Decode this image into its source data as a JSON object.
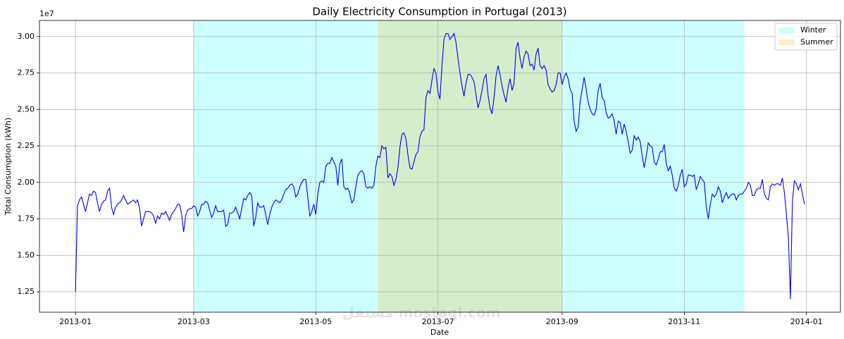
{
  "chart_data": {
    "type": "line",
    "title": "Daily Electricity Consumption in Portugal (2013)",
    "xlabel": "Date",
    "ylabel": "Total Consumption (kWh)",
    "y_offset_label": "1e7",
    "watermark": "مستقل mostaql.com",
    "color": "#0000ff",
    "grid": true,
    "legend": "upper right",
    "xlim": [
      -18,
      382
    ],
    "ylim": [
      1.11,
      3.11
    ],
    "xticks": [
      {
        "value": 0,
        "label": "2013-01"
      },
      {
        "value": 59,
        "label": "2013-03"
      },
      {
        "value": 120,
        "label": "2013-05"
      },
      {
        "value": 181,
        "label": "2013-07"
      },
      {
        "value": 243,
        "label": "2013-09"
      },
      {
        "value": 304,
        "label": "2013-11"
      },
      {
        "value": 365,
        "label": "2014-01"
      }
    ],
    "yticks": [
      1.25,
      {
        "value": 1.5,
        "label": "1.50"
      },
      1.75,
      {
        "value": 2,
        "label": "2.00"
      },
      2.25,
      {
        "value": 2.5,
        "label": "2.50"
      },
      2.75,
      {
        "value": 3,
        "label": "3.00"
      }
    ],
    "shaded_regions": [
      {
        "name": "Winter",
        "color": "#00ffff",
        "opacity": 0.2,
        "range": [
          59,
          334
        ]
      },
      {
        "name": "Summer",
        "color": "#ffa500",
        "opacity": 0.2,
        "range": [
          151,
          243
        ]
      }
    ],
    "x": [
      0,
      1,
      2,
      3,
      4,
      5,
      6,
      7,
      8,
      9,
      10,
      11,
      12,
      13,
      14,
      15,
      16,
      17,
      18,
      19,
      20,
      21,
      22,
      23,
      24,
      25,
      26,
      27,
      28,
      29,
      30,
      31,
      32,
      33,
      34,
      35,
      36,
      37,
      38,
      39,
      40,
      41,
      42,
      43,
      44,
      45,
      46,
      47,
      48,
      49,
      50,
      51,
      52,
      53,
      54,
      55,
      56,
      57,
      58,
      59,
      60,
      61,
      62,
      63,
      64,
      65,
      66,
      67,
      68,
      69,
      70,
      71,
      72,
      73,
      74,
      75,
      76,
      77,
      78,
      79,
      80,
      81,
      82,
      83,
      84,
      85,
      86,
      87,
      88,
      89,
      90,
      91,
      92,
      93,
      94,
      95,
      96,
      97,
      98,
      99,
      100,
      101,
      102,
      103,
      104,
      105,
      106,
      107,
      108,
      109,
      110,
      111,
      112,
      113,
      114,
      115,
      116,
      117,
      118,
      119,
      120,
      121,
      122,
      123,
      124,
      125,
      126,
      127,
      128,
      129,
      130,
      131,
      132,
      133,
      134,
      135,
      136,
      137,
      138,
      139,
      140,
      141,
      142,
      143,
      144,
      145,
      146,
      147,
      148,
      149,
      150,
      151,
      152,
      153,
      154,
      155,
      156,
      157,
      158,
      159,
      160,
      161,
      162,
      163,
      164,
      165,
      166,
      167,
      168,
      169,
      170,
      171,
      172,
      173,
      174,
      175,
      176,
      177,
      178,
      179,
      180,
      181,
      182,
      183,
      184,
      185,
      186,
      187,
      188,
      189,
      190,
      191,
      192,
      193,
      194,
      195,
      196,
      197,
      198,
      199,
      200,
      201,
      202,
      203,
      204,
      205,
      206,
      207,
      208,
      209,
      210,
      211,
      212,
      213,
      214,
      215,
      216,
      217,
      218,
      219,
      220,
      221,
      222,
      223,
      224,
      225,
      226,
      227,
      228,
      229,
      230,
      231,
      232,
      233,
      234,
      235,
      236,
      237,
      238,
      239,
      240,
      241,
      242,
      243,
      244,
      245,
      246,
      247,
      248,
      249,
      250,
      251,
      252,
      253,
      254,
      255,
      256,
      257,
      258,
      259,
      260,
      261,
      262,
      263,
      264,
      265,
      266,
      267,
      268,
      269,
      270,
      271,
      272,
      273,
      274,
      275,
      276,
      277,
      278,
      279,
      280,
      281,
      282,
      283,
      284,
      285,
      286,
      287,
      288,
      289,
      290,
      291,
      292,
      293,
      294,
      295,
      296,
      297,
      298,
      299,
      300,
      301,
      302,
      303,
      304,
      305,
      306,
      307,
      308,
      309,
      310,
      311,
      312,
      313,
      314,
      315,
      316,
      317,
      318,
      319,
      320,
      321,
      322,
      323,
      324,
      325,
      326,
      327,
      328,
      329,
      330,
      331,
      332,
      333,
      334,
      335,
      336,
      337,
      338,
      339,
      340,
      341,
      342,
      343,
      344,
      345,
      346,
      347,
      348,
      349,
      350,
      351,
      352,
      353,
      354,
      355,
      356,
      357,
      358,
      359,
      360,
      361,
      362,
      363,
      364
    ],
    "values": [
      1.25,
      1.84,
      1.88,
      1.9,
      1.85,
      1.8,
      1.86,
      1.92,
      1.91,
      1.94,
      1.93,
      1.86,
      1.8,
      1.85,
      1.87,
      1.88,
      1.94,
      1.96,
      1.83,
      1.78,
      1.83,
      1.85,
      1.86,
      1.88,
      1.91,
      1.88,
      1.85,
      1.86,
      1.87,
      1.88,
      1.86,
      1.88,
      1.82,
      1.7,
      1.75,
      1.8,
      1.8,
      1.8,
      1.79,
      1.77,
      1.72,
      1.77,
      1.75,
      1.79,
      1.78,
      1.8,
      1.77,
      1.74,
      1.78,
      1.8,
      1.82,
      1.85,
      1.85,
      1.78,
      1.66,
      1.77,
      1.81,
      1.82,
      1.82,
      1.84,
      1.83,
      1.77,
      1.8,
      1.85,
      1.85,
      1.87,
      1.86,
      1.81,
      1.76,
      1.79,
      1.84,
      1.8,
      1.8,
      1.8,
      1.81,
      1.7,
      1.71,
      1.79,
      1.79,
      1.8,
      1.83,
      1.79,
      1.75,
      1.82,
      1.89,
      1.88,
      1.91,
      1.93,
      1.91,
      1.7,
      1.76,
      1.86,
      1.83,
      1.83,
      1.84,
      1.78,
      1.71,
      1.78,
      1.83,
      1.86,
      1.88,
      1.87,
      1.86,
      1.88,
      1.92,
      1.95,
      1.96,
      1.98,
      1.99,
      1.97,
      1.9,
      1.92,
      1.97,
      2.0,
      2.02,
      2.02,
      1.9,
      1.77,
      1.8,
      1.85,
      1.78,
      1.92,
      2.0,
      2.01,
      2.0,
      2.11,
      2.13,
      2.13,
      2.17,
      2.14,
      2.11,
      1.98,
      2.13,
      2.16,
      1.97,
      1.95,
      1.96,
      1.92,
      1.86,
      1.88,
      1.97,
      2.05,
      2.07,
      2.08,
      2.06,
      1.97,
      1.96,
      1.97,
      1.96,
      1.98,
      2.11,
      2.18,
      2.17,
      2.25,
      2.23,
      2.24,
      2.03,
      2.06,
      2.04,
      1.98,
      2.02,
      2.1,
      2.24,
      2.33,
      2.34,
      2.3,
      2.19,
      2.1,
      2.09,
      2.14,
      2.19,
      2.21,
      2.31,
      2.35,
      2.36,
      2.58,
      2.63,
      2.61,
      2.7,
      2.78,
      2.75,
      2.62,
      2.57,
      2.8,
      2.98,
      3.02,
      3.02,
      2.98,
      3.0,
      3.02,
      2.96,
      2.85,
      2.75,
      2.66,
      2.59,
      2.68,
      2.74,
      2.74,
      2.72,
      2.69,
      2.6,
      2.51,
      2.56,
      2.63,
      2.71,
      2.74,
      2.6,
      2.51,
      2.47,
      2.58,
      2.73,
      2.8,
      2.74,
      2.66,
      2.6,
      2.55,
      2.65,
      2.71,
      2.63,
      2.68,
      2.92,
      2.96,
      2.85,
      2.78,
      2.86,
      2.9,
      2.88,
      2.8,
      2.81,
      2.77,
      2.88,
      2.92,
      2.8,
      2.78,
      2.8,
      2.77,
      2.67,
      2.64,
      2.62,
      2.63,
      2.67,
      2.75,
      2.75,
      2.67,
      2.72,
      2.75,
      2.71,
      2.64,
      2.61,
      2.42,
      2.35,
      2.38,
      2.55,
      2.64,
      2.72,
      2.64,
      2.55,
      2.5,
      2.47,
      2.46,
      2.5,
      2.63,
      2.68,
      2.58,
      2.56,
      2.48,
      2.44,
      2.45,
      2.47,
      2.42,
      2.33,
      2.42,
      2.41,
      2.33,
      2.4,
      2.35,
      2.28,
      2.2,
      2.22,
      2.32,
      2.29,
      2.31,
      2.28,
      2.18,
      2.1,
      2.18,
      2.27,
      2.25,
      2.24,
      2.14,
      2.12,
      2.16,
      2.21,
      2.21,
      2.26,
      2.13,
      2.08,
      2.11,
      2.05,
      1.96,
      1.94,
      1.98,
      2.05,
      2.09,
      1.97,
      1.99,
      2.05,
      2.05,
      2.04,
      2.05,
      1.95,
      1.99,
      2.04,
      2.02,
      2.0,
      1.83,
      1.75,
      1.85,
      1.92,
      1.9,
      1.92,
      1.97,
      1.94,
      1.86,
      1.9,
      1.93,
      1.89,
      1.91,
      1.92,
      1.92,
      1.88,
      1.91,
      1.92,
      1.92,
      1.94,
      1.96,
      2.0,
      1.98,
      1.91,
      1.91,
      1.95,
      1.96,
      1.96,
      2.02,
      1.92,
      1.89,
      1.88,
      1.97,
      1.99,
      1.98,
      1.99,
      1.99,
      1.98,
      2.03,
      1.93,
      1.78,
      1.62,
      1.2,
      1.87,
      2.01,
      1.99,
      1.95,
      1.99,
      1.92,
      1.85
    ]
  }
}
